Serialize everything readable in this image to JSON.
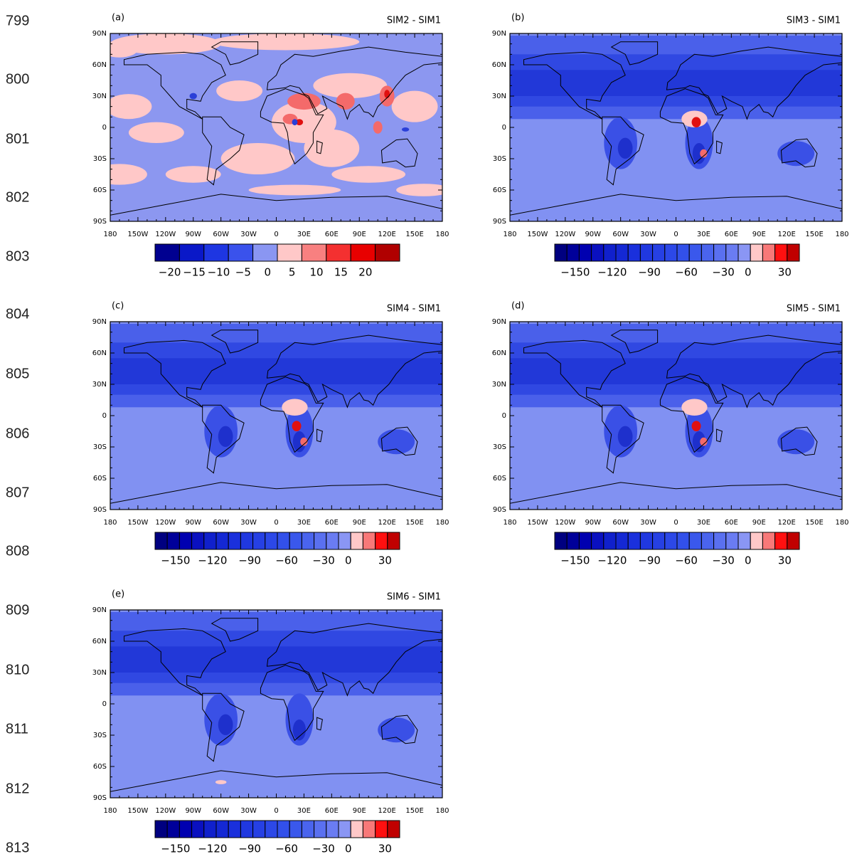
{
  "line_numbers": [
    "799",
    "800",
    "801",
    "802",
    "803",
    "804",
    "805",
    "806",
    "807",
    "808",
    "809",
    "810",
    "811",
    "812",
    "813"
  ],
  "lat_labels": [
    "90N",
    "60N",
    "30N",
    "0",
    "30S",
    "60S",
    "90S"
  ],
  "lon_labels": [
    "180",
    "150W",
    "120W",
    "90W",
    "60W",
    "30W",
    "0",
    "30E",
    "60E",
    "90E",
    "120E",
    "150E",
    "180"
  ],
  "panels": [
    {
      "label": "(a)",
      "title": "SIM2 - SIM1",
      "colorbar": {
        "colors": [
          "#000090",
          "#0a18c8",
          "#1e36e2",
          "#3a52ec",
          "#8a96f2",
          "#ffc8c8",
          "#f88080",
          "#f43030",
          "#e80000",
          "#b00000"
        ],
        "labels": [
          "−20",
          "−15",
          "−10",
          "−5",
          "0",
          "5",
          "10",
          "15",
          "20"
        ]
      }
    },
    {
      "label": "(b)",
      "title": "SIM3 - SIM1",
      "colorbar": {
        "colors": [
          "#000080",
          "#00009a",
          "#0000b0",
          "#0a10c0",
          "#1020cc",
          "#1428d4",
          "#1a30dc",
          "#2038e0",
          "#2640e4",
          "#2c48e8",
          "#3250ea",
          "#3a58ec",
          "#4a64ee",
          "#5a70f0",
          "#6a7cf2",
          "#8a96f4",
          "#ffc8c8",
          "#f87878",
          "#ff1010",
          "#c00000"
        ],
        "labels": [
          "−150",
          "−120",
          "−90",
          "−60",
          "−30",
          "0",
          "30"
        ]
      }
    },
    {
      "label": "(c)",
      "title": "SIM4 - SIM1",
      "colorbar": {
        "colors": [
          "#000080",
          "#00009a",
          "#0000b0",
          "#0a10c0",
          "#1020cc",
          "#1428d4",
          "#1a30dc",
          "#2038e0",
          "#2640e4",
          "#2c48e8",
          "#3250ea",
          "#3a58ec",
          "#4a64ee",
          "#5a70f0",
          "#6a7cf2",
          "#8a96f4",
          "#ffc8c8",
          "#f87878",
          "#ff1010",
          "#c00000"
        ],
        "labels": [
          "−150",
          "−120",
          "−90",
          "−60",
          "−30",
          "0",
          "30"
        ]
      }
    },
    {
      "label": "(d)",
      "title": "SIM5 - SIM1",
      "colorbar": {
        "colors": [
          "#000080",
          "#00009a",
          "#0000b0",
          "#0a10c0",
          "#1020cc",
          "#1428d4",
          "#1a30dc",
          "#2038e0",
          "#2640e4",
          "#2c48e8",
          "#3250ea",
          "#3a58ec",
          "#4a64ee",
          "#5a70f0",
          "#6a7cf2",
          "#8a96f4",
          "#ffc8c8",
          "#f87878",
          "#ff1010",
          "#c00000"
        ],
        "labels": [
          "−150",
          "−120",
          "−90",
          "−60",
          "−30",
          "0",
          "30"
        ]
      }
    },
    {
      "label": "(e)",
      "title": "SIM6 - SIM1",
      "colorbar": {
        "colors": [
          "#000080",
          "#00009a",
          "#0000b0",
          "#0a10c0",
          "#1020cc",
          "#1428d4",
          "#1a30dc",
          "#2038e0",
          "#2640e4",
          "#2c48e8",
          "#3250ea",
          "#3a58ec",
          "#4a64ee",
          "#5a70f0",
          "#6a7cf2",
          "#8a96f4",
          "#ffc8c8",
          "#f87878",
          "#ff1010",
          "#c00000"
        ],
        "labels": [
          "−150",
          "−120",
          "−90",
          "−60",
          "−30",
          "0",
          "30"
        ]
      }
    }
  ]
}
